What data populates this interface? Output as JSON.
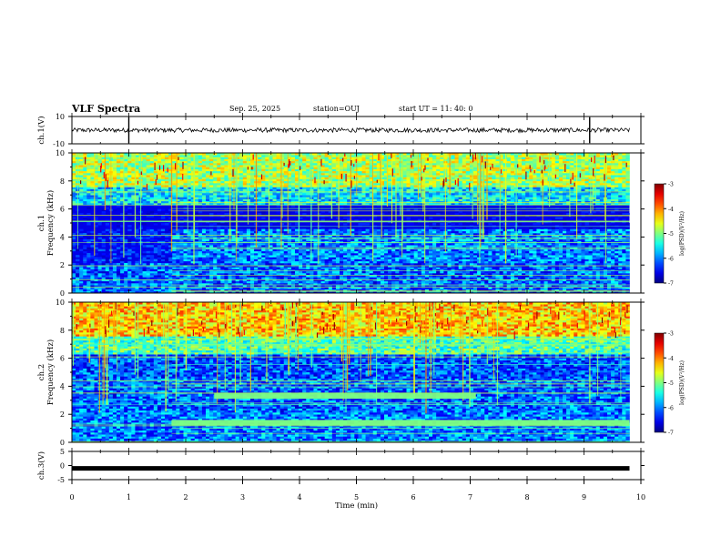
{
  "header": {
    "title": "VLF Spectra",
    "date": "Sep. 25, 2025",
    "station": "station=OUJ",
    "start_time": "start UT =  11: 40: 0"
  },
  "chart_data": [
    {
      "type": "line",
      "panel": "ch1-waveform",
      "ylabel": "ch.1(V)",
      "ylim": [
        -10,
        10
      ],
      "y_ticks": [
        "10",
        "-10"
      ],
      "xlim": [
        0,
        10
      ],
      "baseline": 0,
      "note": "noisy waveform around 0 V with spikes near 1.0 min and 9.1 min"
    },
    {
      "type": "heatmap",
      "panel": "ch1-spectrogram",
      "ylabel": "ch.1\nFrequency (kHz)",
      "ylabel_lines": [
        "ch.1",
        "Frequency (kHz)"
      ],
      "ylim": [
        0,
        10
      ],
      "y_ticks": [
        "0",
        "2",
        "4",
        "6",
        "8",
        "10"
      ],
      "xlim": [
        0,
        10
      ],
      "data_end_min": 9.8,
      "colorbar": {
        "label": "log(PSD)(V²/Hz)",
        "range": [
          -7,
          -3
        ],
        "ticks": [
          "-3",
          "-4",
          "-5",
          "-6",
          "-7"
        ]
      },
      "features": [
        {
          "desc": "high-noise band",
          "from_khz": 6.5,
          "to_khz": 10,
          "level": -4.5
        },
        {
          "desc": "quiet gap",
          "from_khz": 4.5,
          "to_khz": 6.5,
          "level": -6.8
        },
        {
          "desc": "band change",
          "at_min": 1.75
        }
      ]
    },
    {
      "type": "heatmap",
      "panel": "ch2-spectrogram",
      "ylabel": "ch.2\nFrequency (kHz)",
      "ylabel_lines": [
        "ch.2",
        "Frequency (kHz)"
      ],
      "ylim": [
        0,
        10
      ],
      "y_ticks": [
        "0",
        "2",
        "4",
        "6",
        "8",
        "10"
      ],
      "xlim": [
        0,
        10
      ],
      "data_end_min": 9.8,
      "colorbar": {
        "label": "log(PSD)(V²/Hz)",
        "range": [
          -7,
          -3
        ],
        "ticks": [
          "-3",
          "-4",
          "-5",
          "-6",
          "-7"
        ]
      },
      "features": [
        {
          "desc": "high-noise band",
          "from_khz": 6.5,
          "to_khz": 10,
          "level": -4.0
        },
        {
          "desc": "persistent tone",
          "freq_khz": 3.3,
          "from_min": 2.5,
          "to_min": 7.1
        },
        {
          "desc": "persistent tone",
          "freq_khz": 1.4,
          "from_min": 1.75,
          "to_min": 9.8
        }
      ]
    },
    {
      "type": "line",
      "panel": "ch3-waveform",
      "ylabel": "ch.3(V)",
      "ylim": [
        -5,
        5
      ],
      "y_ticks": [
        "5",
        "0",
        "-5"
      ],
      "xlim": [
        0,
        10
      ],
      "baseline": -1.0,
      "note": "thick flat trace near -1 V"
    }
  ],
  "x_axis": {
    "label": "Time (min)",
    "ticks": [
      "0",
      "1",
      "2",
      "3",
      "4",
      "5",
      "6",
      "7",
      "8",
      "9",
      "10"
    ]
  }
}
